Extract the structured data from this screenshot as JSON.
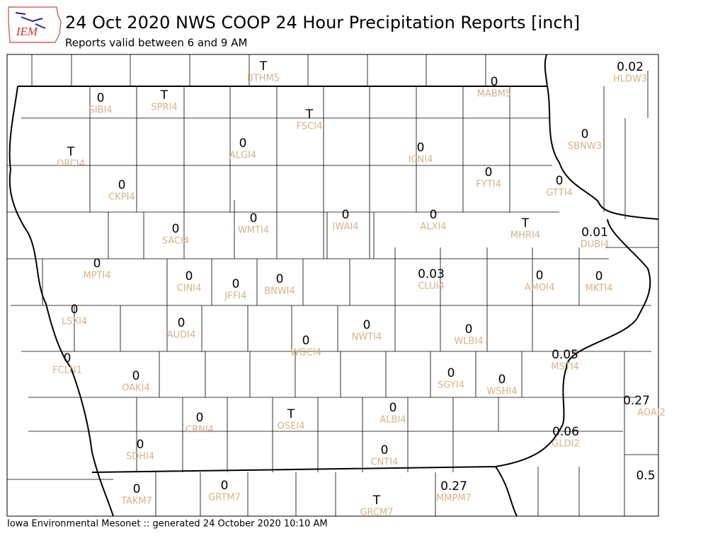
{
  "header": {
    "logo": "IEM",
    "title": "24 Oct 2020 NWS COOP 24 Hour Precipitation Reports [inch]",
    "subtitle": "Reports valid between 6 and 9 AM"
  },
  "stations": [
    {
      "value": "T",
      "id": "BTHM5"
    },
    {
      "value": "0.02",
      "id": "HLDW3"
    },
    {
      "value": "0",
      "id": "MABM5"
    },
    {
      "value": "0",
      "id": "SIBI4"
    },
    {
      "value": "T",
      "id": "SPRI4"
    },
    {
      "value": "T",
      "id": "FSCI4"
    },
    {
      "value": "0",
      "id": "SBNW3"
    },
    {
      "value": "0",
      "id": "ALGI4"
    },
    {
      "value": "T",
      "id": "ORCI4"
    },
    {
      "value": "0",
      "id": "ICNI4"
    },
    {
      "value": "0",
      "id": "FYTI4"
    },
    {
      "value": "0",
      "id": "GTTI4"
    },
    {
      "value": "0",
      "id": "CKPI4"
    },
    {
      "value": "0",
      "id": "WMTI4"
    },
    {
      "value": "0",
      "id": "IWAI4"
    },
    {
      "value": "0",
      "id": "ALXI4"
    },
    {
      "value": "T",
      "id": "MHRI4"
    },
    {
      "value": "0.01",
      "id": "DUBI4"
    },
    {
      "value": "0",
      "id": "SACI4"
    },
    {
      "value": "0",
      "id": "MPTI4"
    },
    {
      "value": "0.03",
      "id": "CLUI4"
    },
    {
      "value": "0",
      "id": "CINI4"
    },
    {
      "value": "0",
      "id": "JFFI4"
    },
    {
      "value": "0",
      "id": "BNWI4"
    },
    {
      "value": "0",
      "id": "AMOI4"
    },
    {
      "value": "0",
      "id": "MKTI4"
    },
    {
      "value": "0",
      "id": "LSXI4"
    },
    {
      "value": "0",
      "id": "AUDI4"
    },
    {
      "value": "0",
      "id": "NWTI4"
    },
    {
      "value": "0",
      "id": "WLBI4"
    },
    {
      "value": "0",
      "id": "WGCI4"
    },
    {
      "value": "0.05",
      "id": "MSTI4"
    },
    {
      "value": "0",
      "id": "FCLN1"
    },
    {
      "value": "0",
      "id": "OAKI4"
    },
    {
      "value": "0",
      "id": "SGYI4"
    },
    {
      "value": "0",
      "id": "WSHI4"
    },
    {
      "value": "0.27",
      "id": "AOAI2"
    },
    {
      "value": "0",
      "id": "CRNI4"
    },
    {
      "value": "T",
      "id": "OSEI4"
    },
    {
      "value": "0",
      "id": "ALBI4"
    },
    {
      "value": "0.06",
      "id": "GLDI2"
    },
    {
      "value": "0",
      "id": "SDHI4"
    },
    {
      "value": "0",
      "id": "CNTI4"
    },
    {
      "value": "0.5"
    },
    {
      "value": "0.27",
      "id": "MMPM7"
    },
    {
      "value": "0",
      "id": "TAKM7"
    },
    {
      "value": "0",
      "id": "GRTM7"
    },
    {
      "value": "T",
      "id": "GRCM7"
    }
  ],
  "footer": "Iowa Environmental Mesonet :: generated 24 October 2020 10:10 AM"
}
